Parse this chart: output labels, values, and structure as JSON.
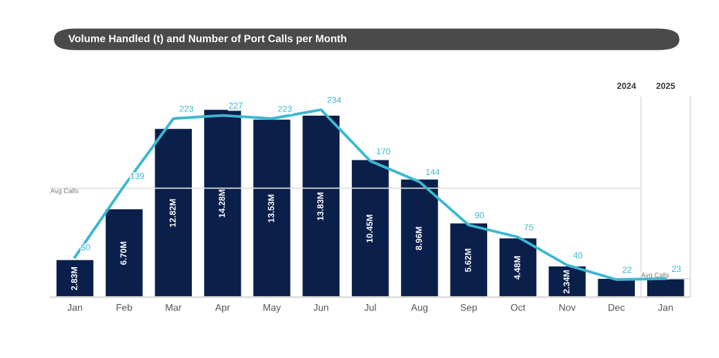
{
  "chart_data": {
    "type": "bar",
    "title": "Volume Handled (t) and Number of Port Calls per Month",
    "categories": [
      "Jan",
      "Feb",
      "Mar",
      "Apr",
      "May",
      "Jun",
      "Jul",
      "Aug",
      "Sep",
      "Oct",
      "Nov",
      "Dec",
      "Jan"
    ],
    "series": [
      {
        "color": "#0b1f4b",
        "values": [
          2.83,
          6.7,
          12.82,
          14.28,
          13.53,
          13.83,
          10.45,
          8.96,
          5.62,
          4.48,
          2.34,
          1.4,
          1.4
        ],
        "value_labels": [
          "2.83M",
          "6.70M",
          "12.82M",
          "14.28M",
          "13.53M",
          "13.83M",
          "10.45M",
          "8.96M",
          "5.62M",
          "4.48M",
          "2.34M",
          null,
          null
        ]
      },
      {
        "type": "line",
        "axis": "y2",
        "color": "#3bb8d0",
        "values": [
          50,
          139,
          223,
          227,
          223,
          234,
          170,
          144,
          90,
          75,
          40,
          22,
          23
        ],
        "value_labels": [
          "50",
          "139",
          "223",
          "227",
          "223",
          "234",
          "170",
          "144",
          "90",
          "75",
          "40",
          "22",
          "23"
        ]
      }
    ],
    "annotations": [
      "2024",
      "2025"
    ],
    "ref_lines": [
      {
        "axis": "y2",
        "value": 136,
        "label": "Avg Calls",
        "color": "#dddddd"
      },
      {
        "axis": "y2",
        "value": 23,
        "label": "Avg Calls",
        "color": "#dddddd"
      }
    ],
    "tick_labels": "x",
    "grid": false,
    "legend": false
  }
}
